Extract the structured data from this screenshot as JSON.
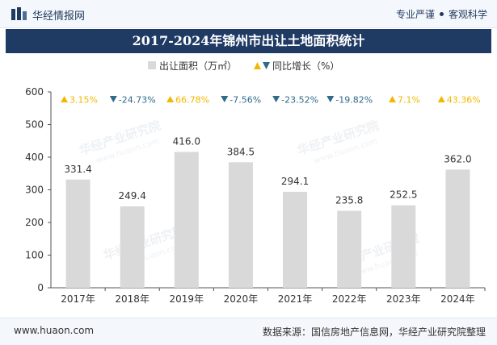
{
  "header": {
    "brand": "华经情报网",
    "slogan_left": "专业严谨",
    "slogan_right": "客观科学"
  },
  "footer": {
    "website": "www.huaon.com",
    "source": "数据来源：国信房地产信息网，华经产业研究院整理"
  },
  "colors": {
    "bar": "#d9d9d9",
    "up": "#f2b800",
    "down": "#2f6b8a",
    "banner": "#1f3a63"
  },
  "chart_data": {
    "type": "bar",
    "title": "2017-2024年锦州市出让土地面积统计",
    "categories": [
      "2017年",
      "2018年",
      "2019年",
      "2020年",
      "2021年",
      "2022年",
      "2023年",
      "2024年"
    ],
    "series": [
      {
        "name": "出让面积（万㎡）",
        "values": [
          331.4,
          249.4,
          416.0,
          384.5,
          294.1,
          235.8,
          252.5,
          362.0
        ]
      }
    ],
    "value_labels": [
      "331.4",
      "249.4",
      "416.0",
      "384.5",
      "294.1",
      "235.8",
      "252.5",
      "362.0"
    ],
    "growth": {
      "name": "同比增长（%）",
      "values": [
        3.15,
        -24.73,
        66.78,
        -7.56,
        -23.52,
        -19.82,
        7.1,
        43.36
      ],
      "labels": [
        "3.15%",
        "-24.73%",
        "66.78%",
        "-7.56%",
        "-23.52%",
        "-19.82%",
        "7.1%",
        "43.36%"
      ]
    },
    "ylim": [
      0,
      600
    ],
    "yticks": [
      "0",
      "100",
      "200",
      "300",
      "400",
      "500",
      "600"
    ],
    "xlabel": "",
    "ylabel": "",
    "legend_position": "top-center",
    "watermark": "华经产业研究院",
    "watermark_url": "www.huaon.com"
  }
}
